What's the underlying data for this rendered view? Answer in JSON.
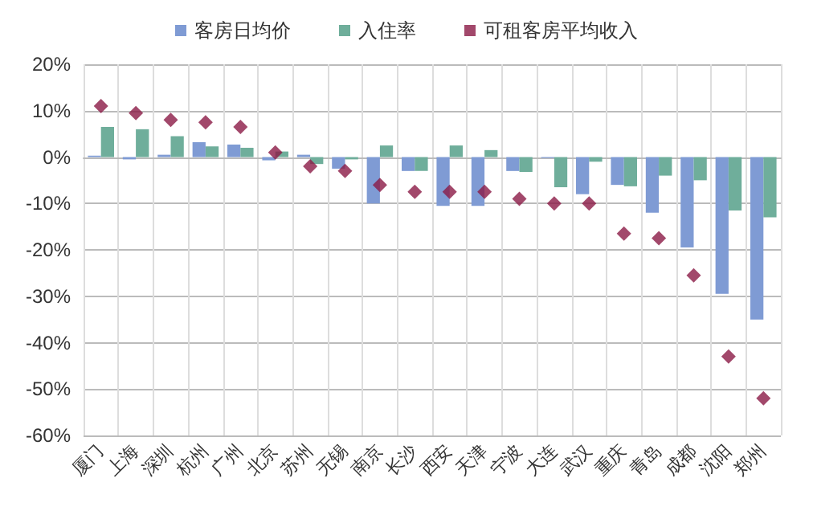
{
  "chart_data": {
    "type": "bar",
    "categories": [
      "厦门",
      "上海",
      "深圳",
      "杭州",
      "广州",
      "北京",
      "苏州",
      "无锡",
      "南京",
      "长沙",
      "西安",
      "天津",
      "宁波",
      "大连",
      "武汉",
      "重庆",
      "青岛",
      "成都",
      "沈阳",
      "郑州"
    ],
    "series": [
      {
        "name": "客房日均价",
        "color": "#7f9bd4",
        "values": [
          0.3,
          -0.5,
          0.5,
          3.2,
          2.7,
          -0.7,
          0.5,
          -2.5,
          -10,
          -3,
          -10.5,
          -10.5,
          -3,
          -0.2,
          -8,
          -6,
          -12,
          -19.5,
          -29.5,
          -35
        ]
      },
      {
        "name": "入住率",
        "color": "#6fae9b",
        "values": [
          6.5,
          6,
          4.5,
          2.3,
          2,
          1.2,
          -1.5,
          -0.5,
          2.5,
          -3,
          2.5,
          1.5,
          -3.2,
          -6.5,
          -1,
          -6.3,
          -4,
          -5,
          -11.5,
          -13
        ]
      },
      {
        "name": "可租客房平均收入",
        "type": "scatter",
        "marker": "diamond",
        "color": "#8b1a46",
        "values": [
          11,
          9.5,
          8,
          7.5,
          6.5,
          1,
          -2,
          -3,
          -6,
          -7.5,
          -7.5,
          -7.5,
          -9,
          -10,
          -10,
          -16.5,
          -17.5,
          -25.5,
          -43,
          -52
        ]
      }
    ],
    "ylim": [
      -60,
      20
    ],
    "yticks": [
      {
        "value": -60,
        "label": "-60%"
      },
      {
        "value": -50,
        "label": "-50%"
      },
      {
        "value": -40,
        "label": "-40%"
      },
      {
        "value": -30,
        "label": "-30%"
      },
      {
        "value": -20,
        "label": "-20%"
      },
      {
        "value": -10,
        "label": "-10%"
      },
      {
        "value": 0,
        "label": "0%"
      },
      {
        "value": 10,
        "label": "10%"
      },
      {
        "value": 20,
        "label": "20%"
      }
    ],
    "grid": true,
    "legend": "top"
  }
}
